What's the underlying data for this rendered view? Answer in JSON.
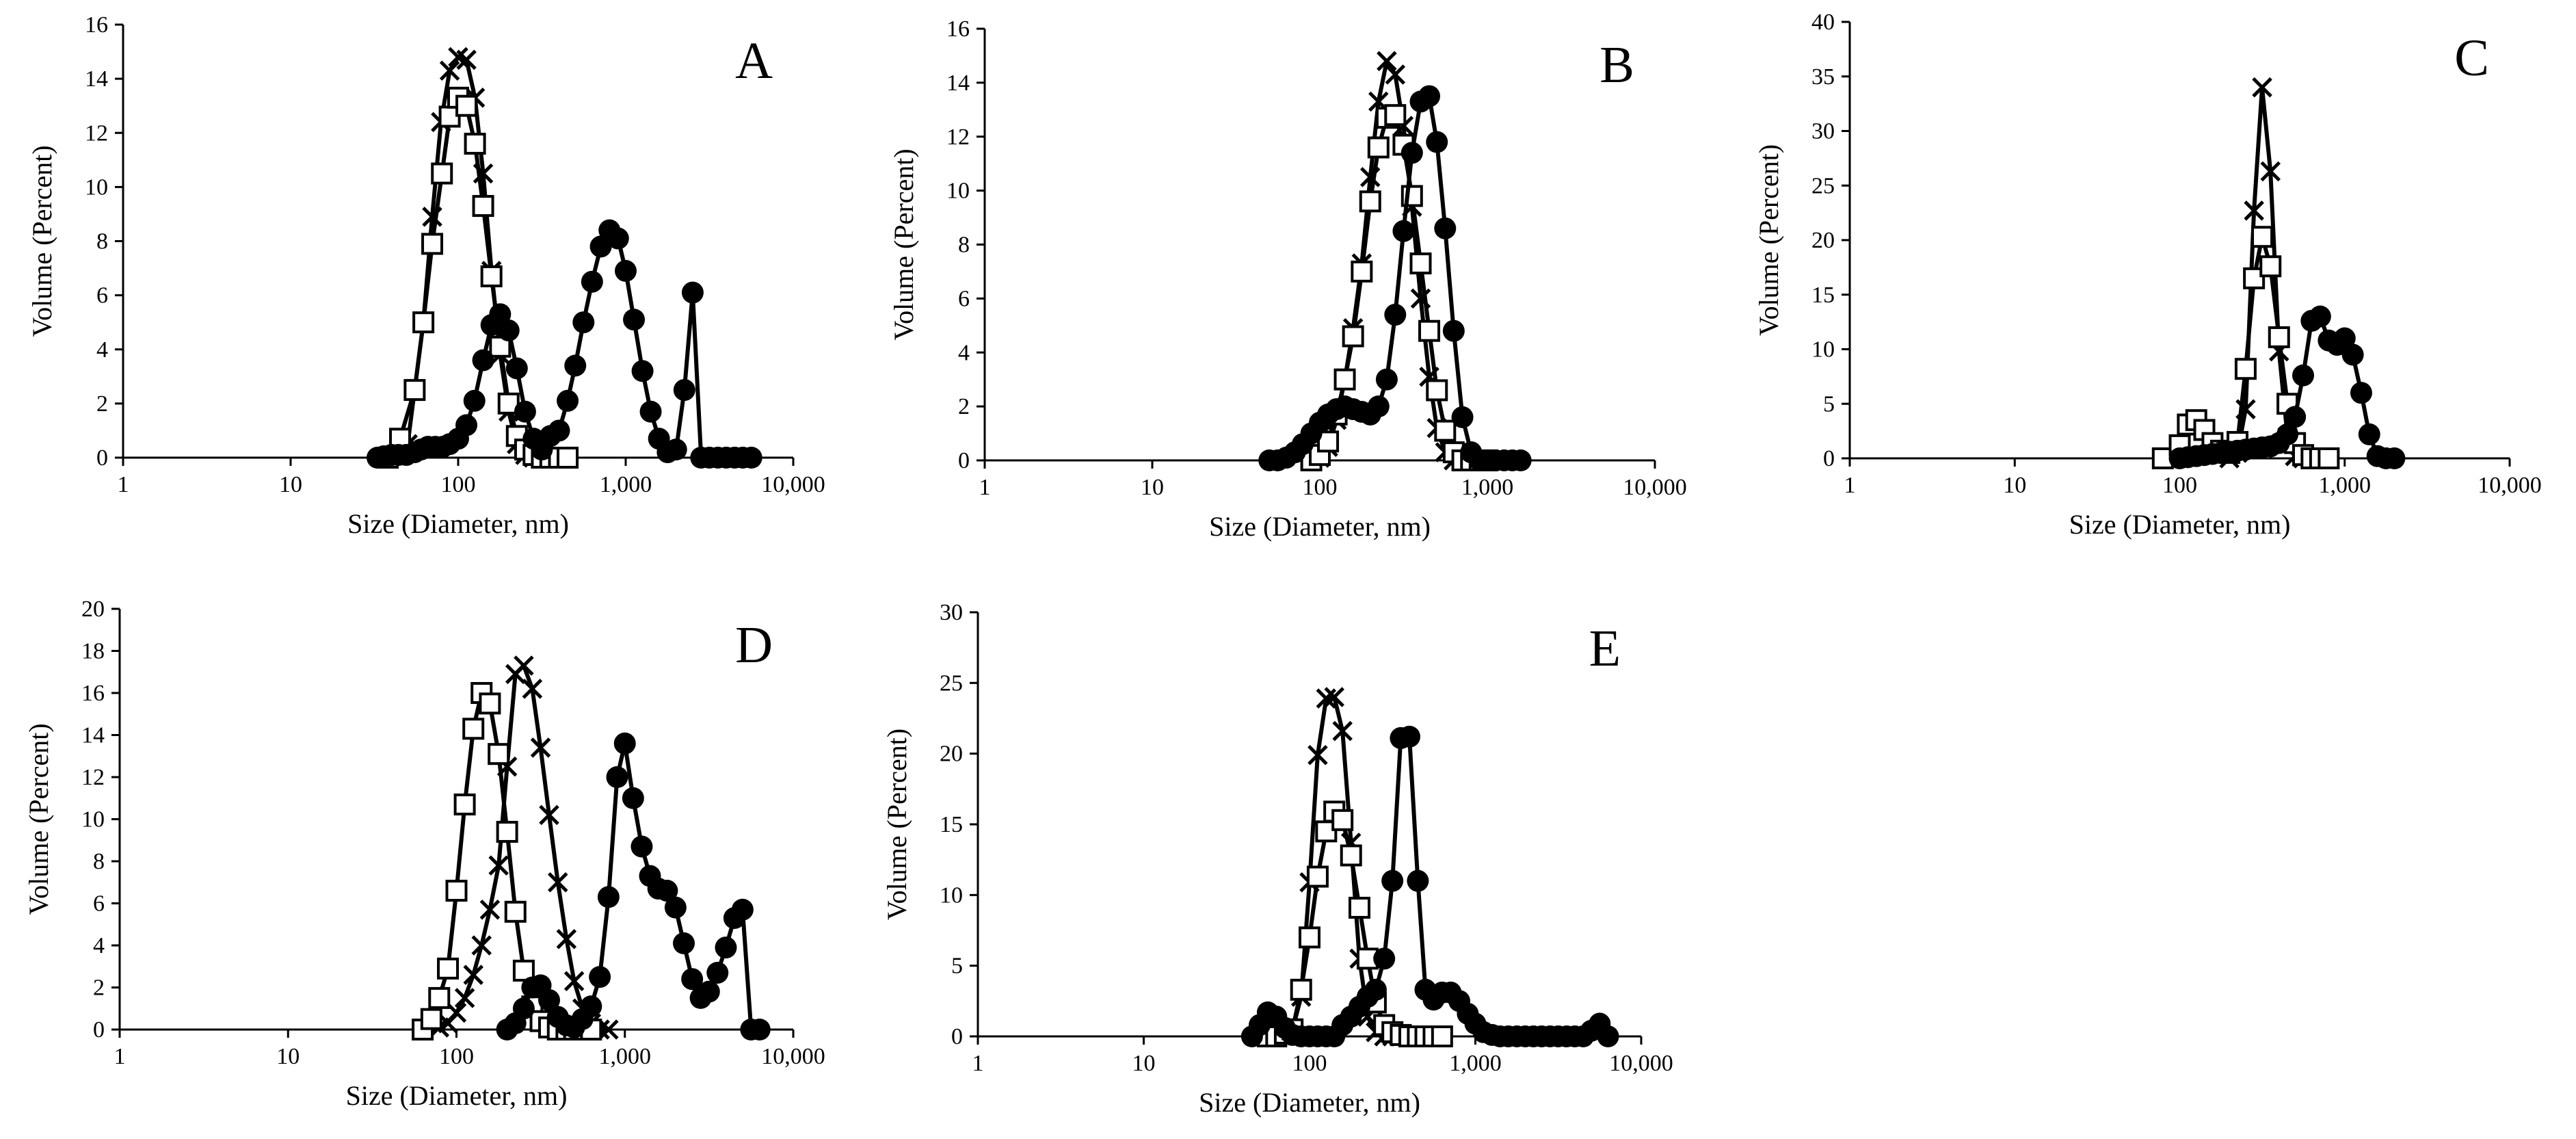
{
  "chart_data": [
    {
      "type": "line",
      "title": "A",
      "xlabel": "Size (Diameter, nm)",
      "ylabel": "Volume (Percent)",
      "xscale": "log",
      "xlim": [
        1,
        10000
      ],
      "ylim": [
        0,
        16
      ],
      "xticks": [
        1,
        10,
        100,
        1000,
        10000
      ],
      "xtick_labels": [
        "1",
        "10",
        "100",
        "1,000",
        "10,000"
      ],
      "yticks": [
        0,
        2,
        4,
        6,
        8,
        10,
        12,
        14,
        16
      ],
      "ytick_labels": [
        "0",
        "2",
        "4",
        "6",
        "8",
        "10",
        "12",
        "14",
        "16"
      ],
      "series": [
        {
          "name": "cross",
          "marker": "x",
          "x": [
            50,
            62,
            70,
            79,
            89,
            100,
            112,
            126,
            141,
            158,
            178,
            200,
            224,
            251,
            282,
            316,
            355
          ],
          "y": [
            0.5,
            5.0,
            8.9,
            12.4,
            14.3,
            14.8,
            14.7,
            13.3,
            10.5,
            6.9,
            3.8,
            1.7,
            0.5,
            0.1,
            0.0,
            0.0,
            0.0
          ]
        },
        {
          "name": "open square",
          "marker": "square",
          "x": [
            38,
            45,
            55,
            62,
            70,
            80,
            89,
            100,
            112,
            126,
            141,
            158,
            178,
            200,
            224,
            251,
            282,
            316,
            355,
            400,
            450
          ],
          "y": [
            0.0,
            0.7,
            2.5,
            5.0,
            7.9,
            10.5,
            12.6,
            13.3,
            13.0,
            11.6,
            9.3,
            6.7,
            4.1,
            2.0,
            0.8,
            0.3,
            0.1,
            0.0,
            0.0,
            0.0,
            0.0
          ]
        },
        {
          "name": "filled circle",
          "marker": "circle",
          "x": [
            33,
            36,
            40,
            44,
            49,
            55,
            60,
            66,
            73,
            81,
            89,
            100,
            112,
            125,
            141,
            158,
            178,
            200,
            224,
            251,
            282,
            316,
            355,
            400,
            450,
            500,
            560,
            630,
            710,
            800,
            900,
            1000,
            1120,
            1260,
            1410,
            1580,
            1780,
            2000,
            2240,
            2510,
            2820,
            3160,
            3550,
            3980,
            4470,
            5000,
            5620
          ],
          "y": [
            0.0,
            0.05,
            0.1,
            0.1,
            0.1,
            0.2,
            0.3,
            0.4,
            0.4,
            0.4,
            0.5,
            0.7,
            1.2,
            2.1,
            3.6,
            4.9,
            5.3,
            4.7,
            3.3,
            1.7,
            0.7,
            0.3,
            0.8,
            1.0,
            2.1,
            3.4,
            5.0,
            6.5,
            7.8,
            8.4,
            8.1,
            6.9,
            5.1,
            3.2,
            1.7,
            0.7,
            0.2,
            0.3,
            2.5,
            6.1,
            0.0,
            0.0,
            0.0,
            0.0,
            0.0,
            0.0,
            0.0
          ]
        }
      ]
    },
    {
      "type": "line",
      "title": "B",
      "xlabel": "Size (Diameter, nm)",
      "ylabel": "Volume (Percent)",
      "xscale": "log",
      "xlim": [
        1,
        10000
      ],
      "ylim": [
        0,
        16
      ],
      "xticks": [
        1,
        10,
        100,
        1000,
        10000
      ],
      "xtick_labels": [
        "1",
        "10",
        "100",
        "1,000",
        "10,000"
      ],
      "yticks": [
        0,
        2,
        4,
        6,
        8,
        10,
        12,
        14,
        16
      ],
      "ytick_labels": [
        "0",
        "2",
        "4",
        "6",
        "8",
        "10",
        "12",
        "14",
        "16"
      ],
      "series": [
        {
          "name": "cross",
          "marker": "x",
          "x": [
            89,
            100,
            112,
            126,
            141,
            158,
            178,
            200,
            224,
            251,
            282,
            316,
            355,
            400,
            450,
            500,
            560,
            630,
            710,
            800
          ],
          "y": [
            0.0,
            0.1,
            0.5,
            1.5,
            3.0,
            4.9,
            7.3,
            10.5,
            13.3,
            14.8,
            14.3,
            12.4,
            9.4,
            6.0,
            3.1,
            1.2,
            0.3,
            0.0,
            0.0,
            0.0
          ]
        },
        {
          "name": "open square",
          "marker": "square",
          "x": [
            89,
            100,
            112,
            126,
            141,
            158,
            178,
            200,
            224,
            251,
            282,
            316,
            355,
            400,
            450,
            500,
            560,
            630,
            710,
            800,
            900,
            1000
          ],
          "y": [
            0.0,
            0.2,
            0.7,
            1.7,
            3.0,
            4.6,
            7.0,
            9.6,
            11.6,
            12.7,
            12.8,
            11.7,
            9.8,
            7.3,
            4.8,
            2.6,
            1.1,
            0.3,
            0.0,
            0.0,
            0.0,
            0.0
          ]
        },
        {
          "name": "filled circle",
          "marker": "circle",
          "x": [
            50,
            56,
            63,
            71,
            79,
            89,
            100,
            112,
            126,
            141,
            158,
            178,
            200,
            224,
            251,
            282,
            316,
            355,
            400,
            450,
            500,
            560,
            630,
            710,
            800,
            900,
            1000,
            1120,
            1260,
            1410,
            1580
          ],
          "y": [
            0.0,
            0.0,
            0.1,
            0.3,
            0.6,
            1.0,
            1.4,
            1.7,
            1.9,
            2.0,
            1.9,
            1.8,
            1.7,
            2.0,
            3.0,
            5.4,
            8.5,
            11.4,
            13.3,
            13.5,
            11.8,
            8.6,
            4.8,
            1.6,
            0.3,
            0.0,
            0.0,
            0.0,
            0.0,
            0.0,
            0.0
          ]
        }
      ]
    },
    {
      "type": "line",
      "title": "C",
      "xlabel": "Size (Diameter, nm)",
      "ylabel": "Volume (Percent)",
      "xscale": "log",
      "xlim": [
        1,
        10000
      ],
      "ylim": [
        0,
        40
      ],
      "xticks": [
        1,
        10,
        100,
        1000,
        10000
      ],
      "xtick_labels": [
        "1",
        "10",
        "100",
        "1,000",
        "10,000"
      ],
      "yticks": [
        0,
        5,
        10,
        15,
        20,
        25,
        30,
        35,
        40
      ],
      "ytick_labels": [
        "0",
        "5",
        "10",
        "15",
        "20",
        "25",
        "30",
        "35",
        "40"
      ],
      "series": [
        {
          "name": "cross",
          "marker": "x",
          "x": [
            200,
            224,
            251,
            282,
            316,
            355,
            400,
            450,
            500,
            560
          ],
          "y": [
            0.0,
            0.5,
            4.5,
            22.7,
            34.0,
            26.3,
            9.8,
            2.0,
            0.2,
            0.0
          ]
        },
        {
          "name": "open square",
          "marker": "square",
          "x": [
            79,
            100,
            112,
            126,
            141,
            158,
            178,
            200,
            224,
            251,
            282,
            316,
            355,
            400,
            450,
            500,
            560,
            630,
            710,
            800
          ],
          "y": [
            0.0,
            1.2,
            3.1,
            3.5,
            2.6,
            1.4,
            0.7,
            0.5,
            1.5,
            8.2,
            16.5,
            20.3,
            17.6,
            11.1,
            5.0,
            1.4,
            0.3,
            0.0,
            0.0,
            0.0
          ]
        },
        {
          "name": "filled circle",
          "marker": "circle",
          "x": [
            100,
            112,
            126,
            141,
            158,
            178,
            200,
            224,
            251,
            282,
            316,
            355,
            400,
            450,
            500,
            560,
            630,
            710,
            800,
            900,
            1000,
            1120,
            1260,
            1410,
            1580,
            1780,
            2000
          ],
          "y": [
            0.0,
            0.1,
            0.2,
            0.3,
            0.4,
            0.5,
            0.6,
            0.7,
            0.8,
            0.9,
            1.0,
            1.1,
            1.4,
            2.2,
            3.8,
            7.6,
            12.6,
            13.0,
            10.8,
            10.4,
            11.0,
            9.5,
            6.0,
            2.2,
            0.2,
            0.0,
            0.0
          ]
        }
      ]
    },
    {
      "type": "line",
      "title": "D",
      "xlabel": "Size (Diameter, nm)",
      "ylabel": "Volume (Percent)",
      "xscale": "log",
      "xlim": [
        1,
        10000
      ],
      "ylim": [
        0,
        20
      ],
      "xticks": [
        1,
        10,
        100,
        1000,
        10000
      ],
      "xtick_labels": [
        "1",
        "10",
        "100",
        "1,000",
        "10,000"
      ],
      "yticks": [
        0,
        2,
        4,
        6,
        8,
        10,
        12,
        14,
        16,
        18,
        20
      ],
      "ytick_labels": [
        "0",
        "2",
        "4",
        "6",
        "8",
        "10",
        "12",
        "14",
        "16",
        "18",
        "20"
      ],
      "series": [
        {
          "name": "cross",
          "marker": "x",
          "x": [
            79,
            89,
            100,
            112,
            126,
            141,
            158,
            178,
            200,
            224,
            251,
            282,
            316,
            355,
            400,
            450,
            500,
            560,
            630,
            710,
            800
          ],
          "y": [
            0.1,
            0.3,
            0.8,
            1.5,
            2.6,
            4.0,
            5.7,
            7.8,
            12.5,
            16.9,
            17.3,
            16.2,
            13.4,
            10.2,
            7.0,
            4.3,
            2.3,
            1.0,
            0.3,
            0.0,
            0.0
          ]
        },
        {
          "name": "open square",
          "marker": "square",
          "x": [
            63,
            71,
            79,
            89,
            100,
            112,
            126,
            141,
            158,
            178,
            200,
            224,
            251,
            282,
            316,
            355,
            400,
            450,
            500,
            560,
            630
          ],
          "y": [
            0.0,
            0.5,
            1.5,
            2.9,
            6.6,
            10.7,
            14.3,
            16.0,
            15.5,
            13.1,
            9.4,
            5.6,
            2.8,
            1.1,
            0.4,
            0.1,
            0.0,
            0.0,
            0.0,
            0.0,
            0.0
          ]
        },
        {
          "name": "filled circle",
          "marker": "circle",
          "x": [
            200,
            224,
            251,
            282,
            316,
            355,
            400,
            450,
            500,
            560,
            630,
            710,
            800,
            900,
            1000,
            1120,
            1260,
            1410,
            1580,
            1780,
            2000,
            2240,
            2510,
            2820,
            3160,
            3550,
            3980,
            4470,
            5000,
            5620,
            6310
          ],
          "y": [
            0.0,
            0.3,
            1.0,
            2.0,
            2.1,
            1.4,
            0.6,
            0.2,
            0.1,
            0.5,
            1.1,
            2.5,
            6.3,
            12.0,
            13.6,
            11.0,
            8.7,
            7.3,
            6.7,
            6.6,
            5.8,
            4.1,
            2.4,
            1.5,
            1.8,
            2.7,
            3.9,
            5.3,
            5.7,
            0.0,
            0.0
          ]
        }
      ]
    },
    {
      "type": "line",
      "title": "E",
      "xlabel": "Size (Diameter, nm)",
      "ylabel": "Volume (Percent)",
      "xscale": "log",
      "xlim": [
        1,
        10000
      ],
      "ylim": [
        0,
        30
      ],
      "xticks": [
        1,
        10,
        100,
        1000,
        10000
      ],
      "xtick_labels": [
        "1",
        "10",
        "100",
        "1,000",
        "10,000"
      ],
      "yticks": [
        0,
        5,
        10,
        15,
        20,
        25,
        30
      ],
      "ytick_labels": [
        "0",
        "5",
        "10",
        "15",
        "20",
        "25",
        "30"
      ],
      "series": [
        {
          "name": "cross",
          "marker": "x",
          "x": [
            79,
            89,
            100,
            112,
            126,
            141,
            158,
            178,
            200,
            224,
            251,
            282,
            316,
            355
          ],
          "y": [
            0.5,
            2.8,
            10.9,
            19.9,
            23.9,
            24.0,
            21.6,
            13.7,
            5.5,
            1.4,
            0.3,
            0.0,
            0.0,
            0.0
          ]
        },
        {
          "name": "open square",
          "marker": "square",
          "x": [
            56,
            63,
            71,
            79,
            89,
            100,
            112,
            126,
            141,
            158,
            178,
            200,
            224,
            251,
            282,
            316,
            355,
            400,
            450,
            500,
            560,
            630
          ],
          "y": [
            0.0,
            0.0,
            0.2,
            0.5,
            3.3,
            7.0,
            11.3,
            14.5,
            15.9,
            15.3,
            12.8,
            9.1,
            5.5,
            2.4,
            0.8,
            0.3,
            0.1,
            0.0,
            0.0,
            0.0,
            0.0,
            0.0
          ]
        },
        {
          "name": "filled circle",
          "marker": "circle",
          "x": [
            45,
            50,
            56,
            63,
            71,
            79,
            89,
            100,
            112,
            126,
            141,
            158,
            178,
            200,
            224,
            251,
            282,
            316,
            355,
            400,
            450,
            500,
            560,
            630,
            710,
            800,
            900,
            1000,
            1120,
            1260,
            1410,
            1580,
            1780,
            2000,
            2240,
            2510,
            2820,
            3160,
            3550,
            3980,
            4470,
            5000,
            5620,
            6310
          ],
          "y": [
            0.0,
            0.8,
            1.7,
            1.4,
            0.6,
            0.1,
            0.0,
            0.0,
            0.0,
            0.0,
            0.0,
            0.8,
            1.4,
            2.1,
            2.8,
            3.3,
            5.5,
            11.0,
            21.1,
            21.2,
            11.0,
            3.3,
            2.6,
            3.1,
            3.1,
            2.5,
            1.6,
            0.9,
            0.3,
            0.1,
            0.0,
            0.0,
            0.0,
            0.0,
            0.0,
            0.0,
            0.0,
            0.0,
            0.0,
            0.0,
            0.0,
            0.4,
            0.9,
            0.0
          ]
        }
      ]
    }
  ]
}
